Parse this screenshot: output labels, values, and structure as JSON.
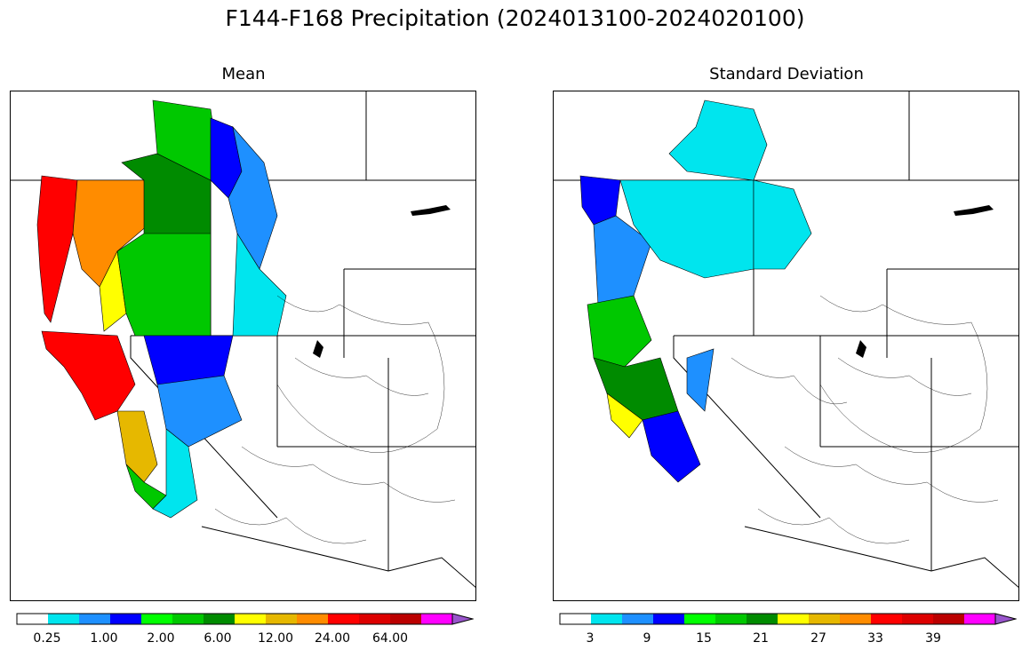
{
  "figure": {
    "title": "F144-F168 Precipitation (2024013100-2024020100)"
  },
  "panels": [
    {
      "title": "Mean",
      "colorbar": {
        "colors": [
          "#ffffff",
          "#00e5ee",
          "#1e90ff",
          "#0000ff",
          "#00ff00",
          "#00c800",
          "#008b00",
          "#ffff00",
          "#e6b800",
          "#ff8c00",
          "#ff0000",
          "#dd0000",
          "#bb0000",
          "#ff00ff",
          "#9955cc"
        ],
        "tick_labels": [
          "0.25",
          "1.00",
          "2.00",
          "6.00",
          "12.00",
          "24.00",
          "64.00"
        ],
        "extend": "max"
      }
    },
    {
      "title": "Standard Deviation",
      "colorbar": {
        "colors": [
          "#ffffff",
          "#00e5ee",
          "#1e90ff",
          "#0000ff",
          "#00ff00",
          "#00c800",
          "#008b00",
          "#ffff00",
          "#e6b800",
          "#ff8c00",
          "#ff0000",
          "#dd0000",
          "#bb0000",
          "#ff00ff",
          "#9955cc"
        ],
        "tick_labels": [
          "3",
          "9",
          "15",
          "21",
          "27",
          "33",
          "39"
        ],
        "extend": "max"
      }
    }
  ]
}
